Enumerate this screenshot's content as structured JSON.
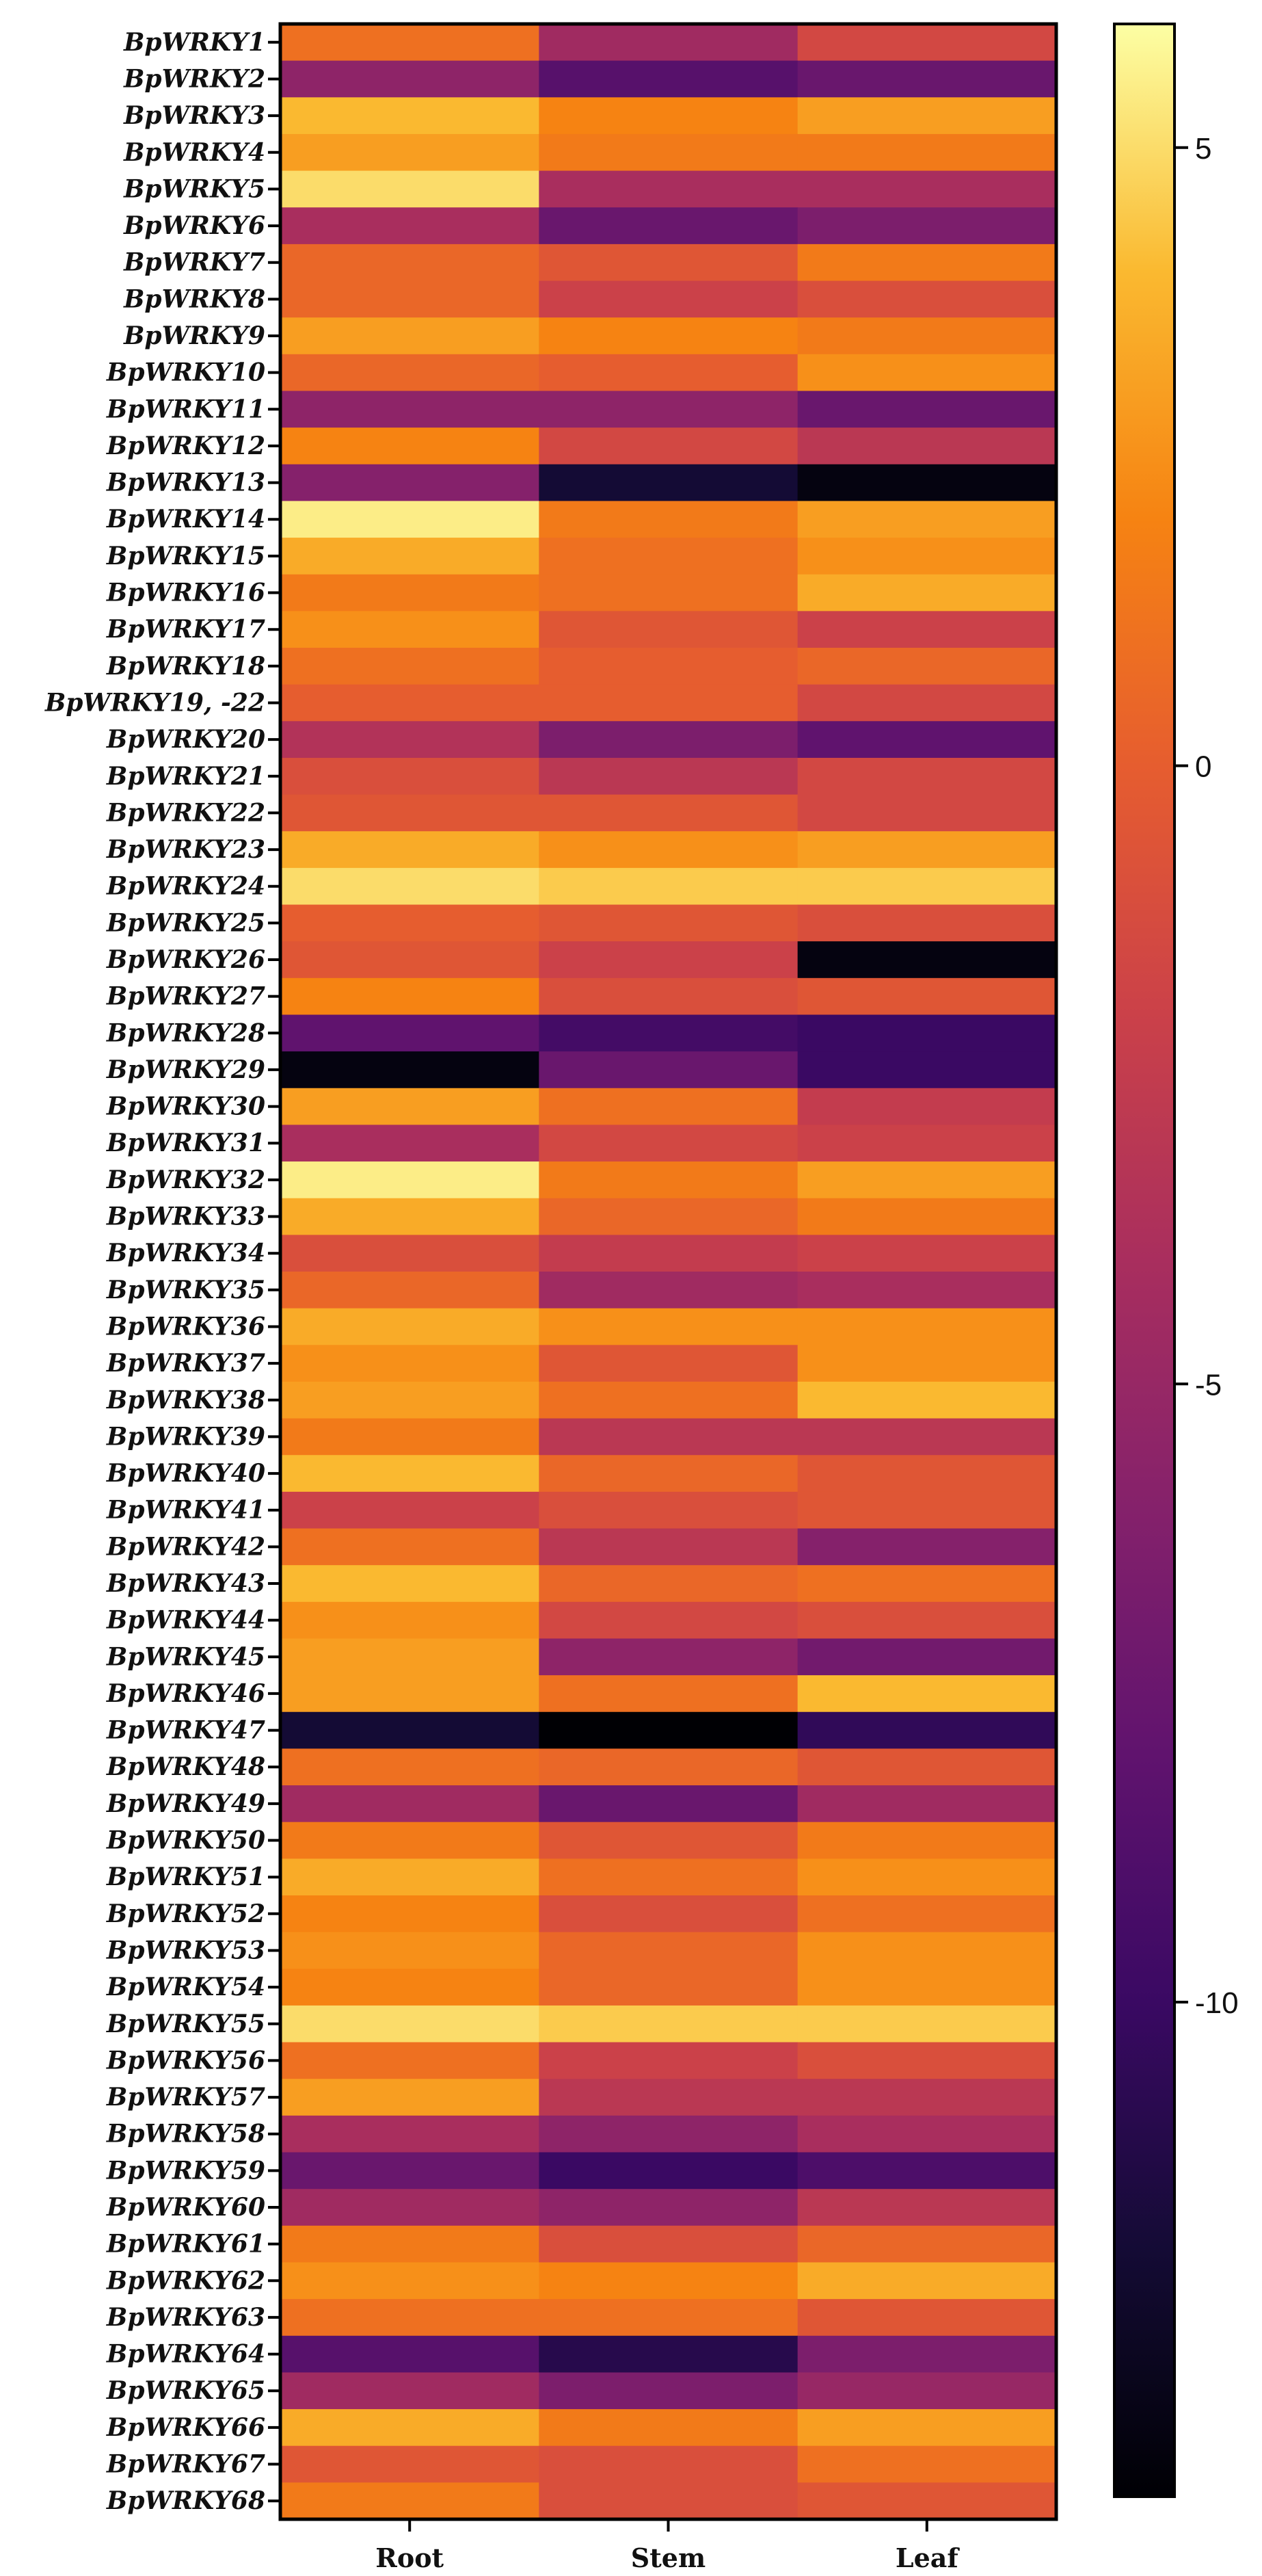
{
  "chart_data": {
    "type": "heatmap",
    "title": "",
    "xlabel": "",
    "ylabel": "",
    "columns": [
      "Root",
      "Stem",
      "Leaf"
    ],
    "rows": [
      "BpWRKY1",
      "BpWRKY2",
      "BpWRKY3",
      "BpWRKY4",
      "BpWRKY5",
      "BpWRKY6",
      "BpWRKY7",
      "BpWRKY8",
      "BpWRKY9",
      "BpWRKY10",
      "BpWRKY11",
      "BpWRKY12",
      "BpWRKY13",
      "BpWRKY14",
      "BpWRKY15",
      "BpWRKY16",
      "BpWRKY17",
      "BpWRKY18",
      "BpWRKY19, -22",
      "BpWRKY20",
      "BpWRKY21",
      "BpWRKY22",
      "BpWRKY23",
      "BpWRKY24",
      "BpWRKY25",
      "BpWRKY26",
      "BpWRKY27",
      "BpWRKY28",
      "BpWRKY29",
      "BpWRKY30",
      "BpWRKY31",
      "BpWRKY32",
      "BpWRKY33",
      "BpWRKY34",
      "BpWRKY35",
      "BpWRKY36",
      "BpWRKY37",
      "BpWRKY38",
      "BpWRKY39",
      "BpWRKY40",
      "BpWRKY41",
      "BpWRKY42",
      "BpWRKY43",
      "BpWRKY44",
      "BpWRKY45",
      "BpWRKY46",
      "BpWRKY47",
      "BpWRKY48",
      "BpWRKY49",
      "BpWRKY50",
      "BpWRKY51",
      "BpWRKY52",
      "BpWRKY53",
      "BpWRKY54",
      "BpWRKY55",
      "BpWRKY56",
      "BpWRKY57",
      "BpWRKY58",
      "BpWRKY59",
      "BpWRKY60",
      "BpWRKY61",
      "BpWRKY62",
      "BpWRKY63",
      "BpWRKY64",
      "BpWRKY65",
      "BpWRKY66",
      "BpWRKY67",
      "BpWRKY68"
    ],
    "values": [
      [
        1.0,
        -4.5,
        -1.5
      ],
      [
        -5.5,
        -8.5,
        -7.5
      ],
      [
        4.0,
        2.0,
        3.0
      ],
      [
        3.0,
        1.5,
        1.5
      ],
      [
        5.0,
        -4.0,
        -4.0
      ],
      [
        -4.0,
        -7.5,
        -6.5
      ],
      [
        0.5,
        -0.5,
        1.5
      ],
      [
        0.5,
        -2.0,
        -1.0
      ],
      [
        3.0,
        2.0,
        1.5
      ],
      [
        0.5,
        0.0,
        2.5
      ],
      [
        -5.5,
        -5.5,
        -7.5
      ],
      [
        2.0,
        -1.5,
        -3.0
      ],
      [
        -6.0,
        -12.0,
        -13.5
      ],
      [
        5.5,
        1.5,
        3.0
      ],
      [
        3.5,
        1.0,
        2.5
      ],
      [
        1.5,
        1.0,
        3.5
      ],
      [
        2.5,
        -0.5,
        -2.0
      ],
      [
        1.0,
        0.0,
        0.5
      ],
      [
        0.0,
        0.0,
        -1.5
      ],
      [
        -3.5,
        -6.5,
        -8.0
      ],
      [
        -1.0,
        -3.0,
        -1.5
      ],
      [
        -0.5,
        -0.5,
        -1.5
      ],
      [
        3.5,
        2.5,
        3.0
      ],
      [
        5.0,
        4.5,
        4.5
      ],
      [
        0.0,
        -0.5,
        -1.0
      ],
      [
        -0.5,
        -2.0,
        -13.5
      ],
      [
        2.0,
        -1.0,
        -0.5
      ],
      [
        -8.0,
        -9.5,
        -10.0
      ],
      [
        -13.5,
        -7.5,
        -10.0
      ],
      [
        3.0,
        1.0,
        -2.5
      ],
      [
        -4.0,
        -1.5,
        -2.0
      ],
      [
        5.5,
        1.5,
        3.0
      ],
      [
        3.5,
        0.5,
        1.5
      ],
      [
        -1.0,
        -2.5,
        -2.0
      ],
      [
        0.5,
        -4.5,
        -4.0
      ],
      [
        3.5,
        2.5,
        2.5
      ],
      [
        2.5,
        -0.5,
        2.5
      ],
      [
        3.0,
        1.0,
        4.0
      ],
      [
        1.5,
        -3.0,
        -3.0
      ],
      [
        4.0,
        0.5,
        -0.5
      ],
      [
        -2.0,
        -1.0,
        -0.5
      ],
      [
        1.0,
        -3.0,
        -6.0
      ],
      [
        4.0,
        0.5,
        1.0
      ],
      [
        2.5,
        -1.5,
        -1.0
      ],
      [
        3.0,
        -5.5,
        -7.0
      ],
      [
        3.0,
        1.0,
        4.0
      ],
      [
        -12.0,
        -14.0,
        -10.5
      ],
      [
        1.0,
        0.5,
        -0.5
      ],
      [
        -4.5,
        -7.5,
        -4.5
      ],
      [
        1.5,
        -0.5,
        1.5
      ],
      [
        3.5,
        1.0,
        2.5
      ],
      [
        2.0,
        -1.0,
        1.0
      ],
      [
        2.5,
        0.5,
        2.5
      ],
      [
        2.0,
        0.5,
        2.5
      ],
      [
        5.0,
        4.5,
        4.5
      ],
      [
        1.0,
        -2.0,
        -1.0
      ],
      [
        3.0,
        -3.0,
        -3.0
      ],
      [
        -4.0,
        -5.5,
        -4.0
      ],
      [
        -7.5,
        -10.0,
        -9.0
      ],
      [
        -4.5,
        -5.5,
        -3.0
      ],
      [
        1.5,
        -1.0,
        0.5
      ],
      [
        2.5,
        2.0,
        3.5
      ],
      [
        1.0,
        1.0,
        -0.5
      ],
      [
        -8.5,
        -11.0,
        -6.5
      ],
      [
        -4.5,
        -6.5,
        -5.0
      ],
      [
        3.5,
        1.5,
        3.0
      ],
      [
        -0.5,
        -1.0,
        1.0
      ],
      [
        1.5,
        -1.0,
        -0.5
      ]
    ],
    "colorbar": {
      "range": [
        -14,
        6
      ],
      "ticks": [
        5,
        0,
        -5,
        -10
      ],
      "tick_labels": [
        "5",
        "0",
        "-5",
        "-10"
      ],
      "colormap": "inferno"
    }
  }
}
